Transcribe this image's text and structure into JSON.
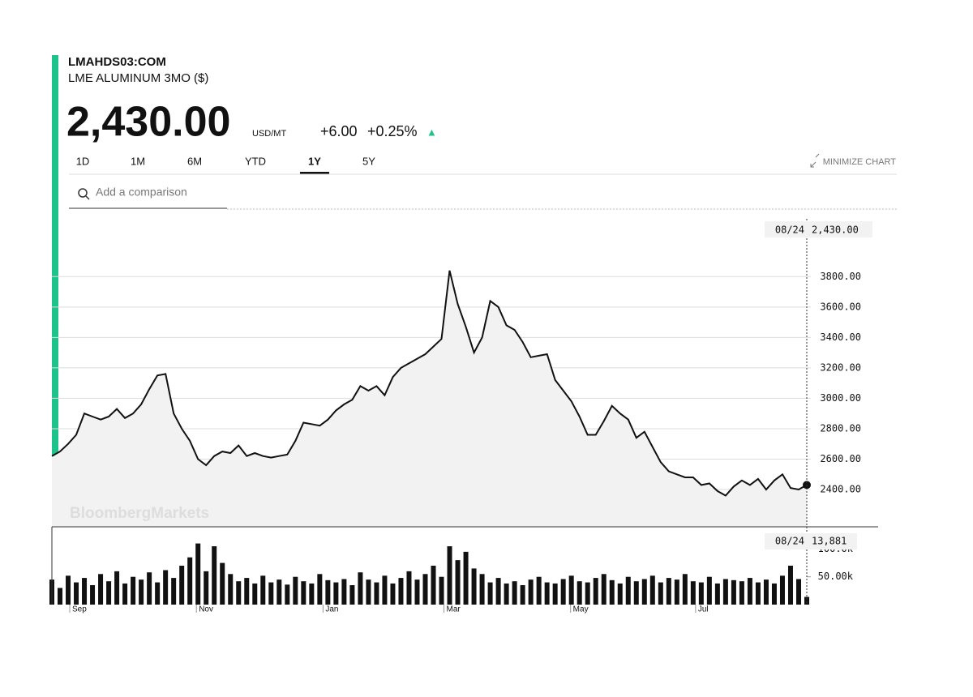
{
  "header": {
    "ticker": "LMAHDS03:COM",
    "name": "LME ALUMINUM 3MO ($)",
    "price": "2,430.00",
    "unit": "USD/MT",
    "change": "+6.00",
    "change_pct": "+0.25%",
    "arrow": "▲"
  },
  "tabs": [
    {
      "label": "1D"
    },
    {
      "label": "1M"
    },
    {
      "label": "6M"
    },
    {
      "label": "YTD"
    },
    {
      "label": "1Y",
      "active": true
    },
    {
      "label": "5Y"
    }
  ],
  "minimize": "MINIMIZE CHART",
  "search_placeholder": "Add a comparison",
  "watermark": "BloombergMarkets",
  "crosshair": {
    "date": "08/24",
    "price": "2,430.00",
    "volume_date": "08/24",
    "volume": "13,881"
  },
  "chart_data": [
    {
      "type": "line",
      "color": "#111111",
      "fill": "#f2f2f2",
      "x": [
        0,
        1,
        2,
        3,
        4,
        5,
        6,
        7,
        8,
        9,
        10,
        11,
        12,
        13,
        14,
        15,
        16,
        17,
        18,
        19,
        20,
        21,
        22,
        23,
        24,
        25,
        26,
        27,
        28,
        29,
        30,
        31,
        32,
        33,
        34,
        35,
        36,
        37,
        38,
        39,
        40,
        41,
        42,
        43,
        44,
        45,
        46,
        47,
        48,
        49,
        50,
        51,
        52,
        53,
        54,
        55,
        56,
        57,
        58,
        59,
        60,
        61,
        62,
        63,
        64,
        65,
        66,
        67,
        68,
        69,
        70,
        71,
        72,
        73,
        74,
        75,
        76,
        77,
        78,
        79,
        80,
        81,
        82,
        83,
        84,
        85,
        86,
        87,
        88,
        89,
        90,
        91,
        92,
        93
      ],
      "values": [
        2620,
        2650,
        2700,
        2760,
        2900,
        2880,
        2860,
        2880,
        2930,
        2870,
        2900,
        2960,
        3060,
        3150,
        3160,
        2900,
        2800,
        2720,
        2600,
        2560,
        2620,
        2650,
        2640,
        2690,
        2620,
        2640,
        2620,
        2610,
        2620,
        2630,
        2720,
        2840,
        2830,
        2820,
        2860,
        2920,
        2960,
        2990,
        3080,
        3050,
        3080,
        3020,
        3140,
        3200,
        3230,
        3260,
        3290,
        3340,
        3390,
        3840,
        3620,
        3470,
        3300,
        3400,
        3640,
        3600,
        3480,
        3450,
        3370,
        3270,
        3280,
        3290,
        3120,
        3050,
        2980,
        2880,
        2760,
        2760,
        2850,
        2950,
        2900,
        2860,
        2740,
        2780,
        2680,
        2580,
        2520,
        2500,
        2480,
        2480,
        2430,
        2440,
        2390,
        2360,
        2420,
        2460,
        2430,
        2470,
        2400,
        2460,
        2500,
        2410,
        2400,
        2430
      ],
      "xlim": [
        0,
        93
      ],
      "ylim": [
        2155,
        4180
      ],
      "yticks": [
        {
          "value": 2400,
          "label": "2400.00"
        },
        {
          "value": 2600,
          "label": "2600.00"
        },
        {
          "value": 2800,
          "label": "2800.00"
        },
        {
          "value": 3000,
          "label": "3000.00"
        },
        {
          "value": 3200,
          "label": "3200.00"
        },
        {
          "value": 3400,
          "label": "3400.00"
        },
        {
          "value": 3600,
          "label": "3600.00"
        },
        {
          "value": 3800,
          "label": "3800.00"
        }
      ],
      "grid": true
    },
    {
      "type": "bar",
      "color": "#111111",
      "x": [
        0,
        1,
        2,
        3,
        4,
        5,
        6,
        7,
        8,
        9,
        10,
        11,
        12,
        13,
        14,
        15,
        16,
        17,
        18,
        19,
        20,
        21,
        22,
        23,
        24,
        25,
        26,
        27,
        28,
        29,
        30,
        31,
        32,
        33,
        34,
        35,
        36,
        37,
        38,
        39,
        40,
        41,
        42,
        43,
        44,
        45,
        46,
        47,
        48,
        49,
        50,
        51,
        52,
        53,
        54,
        55,
        56,
        57,
        58,
        59,
        60,
        61,
        62,
        63,
        64,
        65,
        66,
        67,
        68,
        69,
        70,
        71,
        72,
        73,
        74,
        75,
        76,
        77,
        78,
        79,
        80,
        81,
        82,
        83,
        84,
        85,
        86,
        87,
        88,
        89,
        90,
        91,
        92,
        93
      ],
      "values": [
        45000,
        30000,
        52000,
        40000,
        48000,
        35000,
        55000,
        42000,
        60000,
        38000,
        50000,
        45000,
        58000,
        40000,
        62000,
        48000,
        70000,
        85000,
        110000,
        60000,
        105000,
        75000,
        55000,
        42000,
        48000,
        38000,
        52000,
        40000,
        45000,
        36000,
        50000,
        42000,
        38000,
        55000,
        44000,
        40000,
        46000,
        35000,
        58000,
        45000,
        40000,
        52000,
        38000,
        48000,
        60000,
        45000,
        55000,
        70000,
        50000,
        105000,
        80000,
        95000,
        65000,
        55000,
        40000,
        48000,
        38000,
        42000,
        35000,
        45000,
        50000,
        40000,
        38000,
        46000,
        52000,
        42000,
        40000,
        48000,
        55000,
        44000,
        38000,
        50000,
        42000,
        46000,
        52000,
        40000,
        48000,
        45000,
        55000,
        42000,
        40000,
        50000,
        38000,
        46000,
        44000,
        42000,
        48000,
        40000,
        45000,
        38000,
        52000,
        70000,
        46000,
        13881
      ],
      "xlim": [
        0,
        93
      ],
      "ylim": [
        0,
        140000
      ],
      "yticks": [
        {
          "value": 50000,
          "label": "50.00k"
        },
        {
          "value": 100000,
          "label": "100.0k"
        }
      ],
      "xticks": [
        {
          "value": 2.2,
          "label": "Sep"
        },
        {
          "value": 17.8,
          "label": "Nov"
        },
        {
          "value": 33.4,
          "label": "Jan"
        },
        {
          "value": 48.3,
          "label": "Mar"
        },
        {
          "value": 63.9,
          "label": "May"
        },
        {
          "value": 79.3,
          "label": "Jul"
        }
      ]
    }
  ]
}
